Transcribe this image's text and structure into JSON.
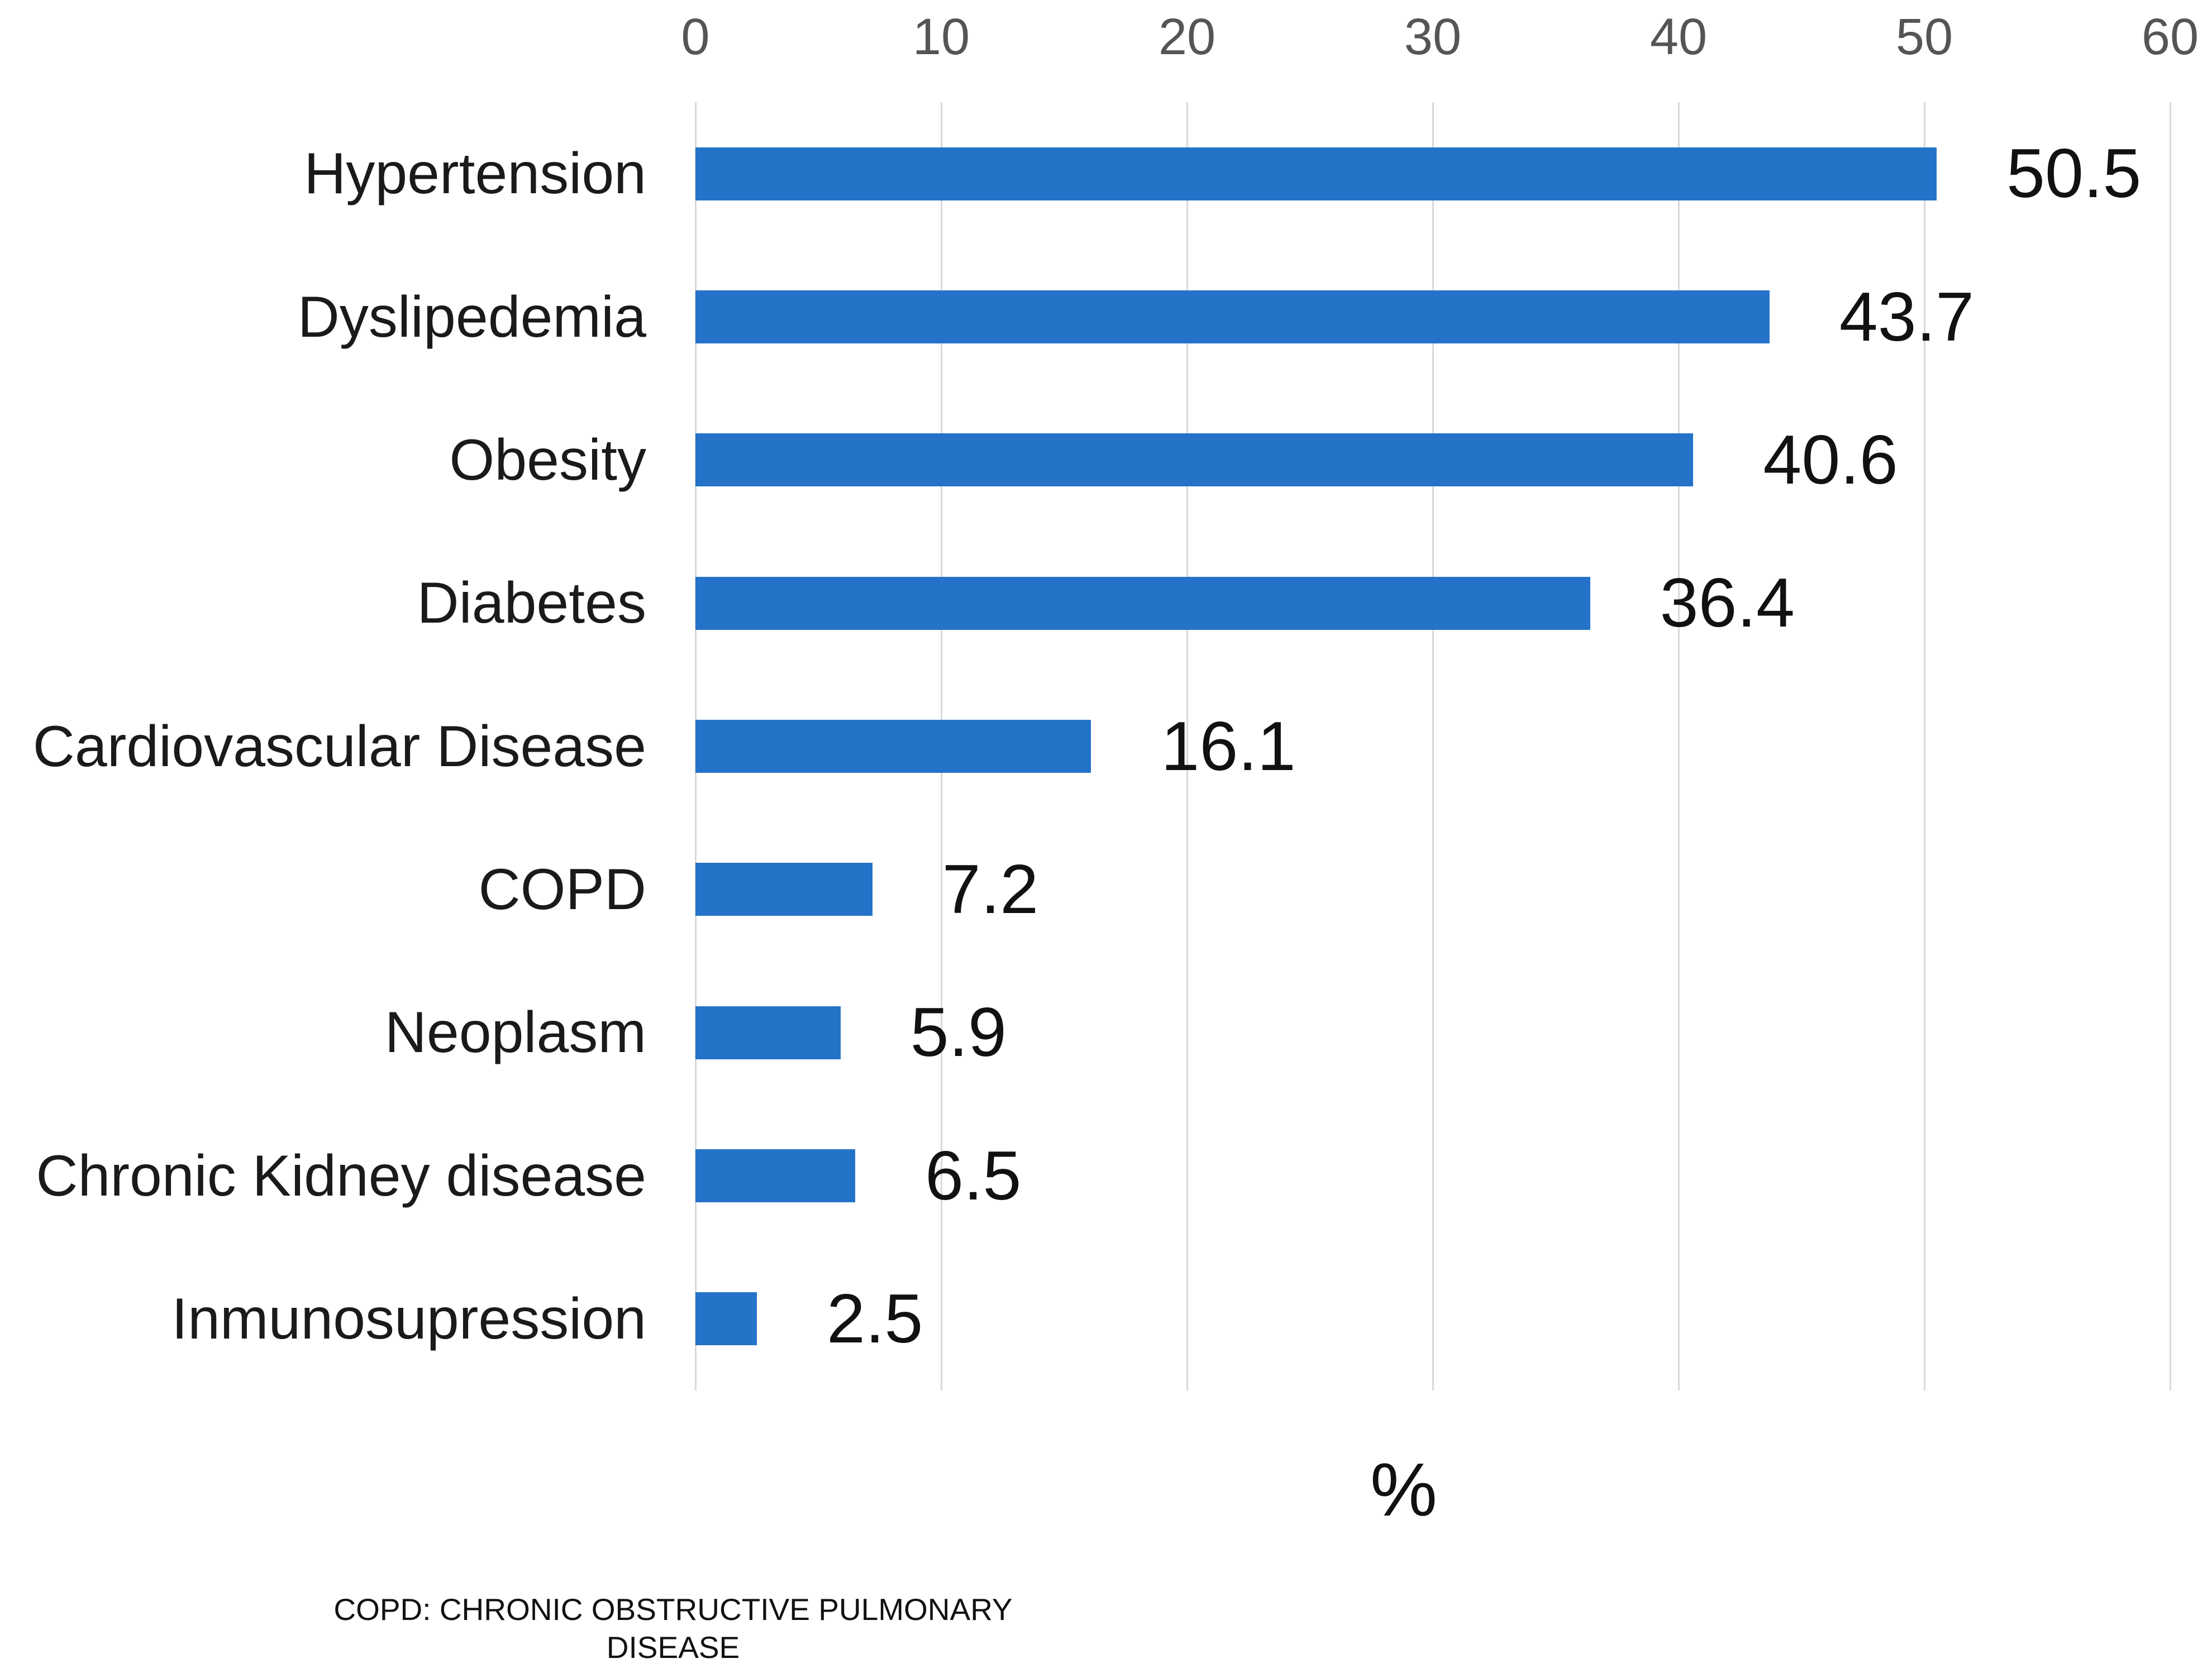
{
  "chart_data": {
    "type": "bar",
    "orientation": "horizontal",
    "title": "",
    "categories": [
      "Hypertension",
      "Dyslipedemia",
      "Obesity",
      "Diabetes",
      "Cardiovascular Disease",
      "COPD",
      "Neoplasm",
      "Chronic Kidney disease",
      "Inmunosupression"
    ],
    "values": [
      50.5,
      43.7,
      40.6,
      36.4,
      16.1,
      7.2,
      5.9,
      6.5,
      2.5
    ],
    "value_labels": [
      "50.5",
      "43.7",
      "40.6",
      "36.4",
      "16.1",
      "7.2",
      "5.9",
      "6.5",
      "2.5"
    ],
    "xlabel": "%",
    "ylabel": "",
    "x_ticks": [
      "0",
      "10",
      "20",
      "30",
      "40",
      "50",
      "60"
    ],
    "x_tick_values": [
      0,
      10,
      20,
      30,
      40,
      50,
      60
    ],
    "xlim": [
      0,
      60
    ],
    "grid": true,
    "legend": false,
    "bar_color": "#2473C9",
    "gridline_color": "#D9D9D9",
    "tick_label_color": "#555555",
    "text_color": "#111111"
  },
  "footnote": {
    "line1": "COPD: CHRONIC OBSTRUCTIVE PULMONARY",
    "line2": "DISEASE"
  }
}
